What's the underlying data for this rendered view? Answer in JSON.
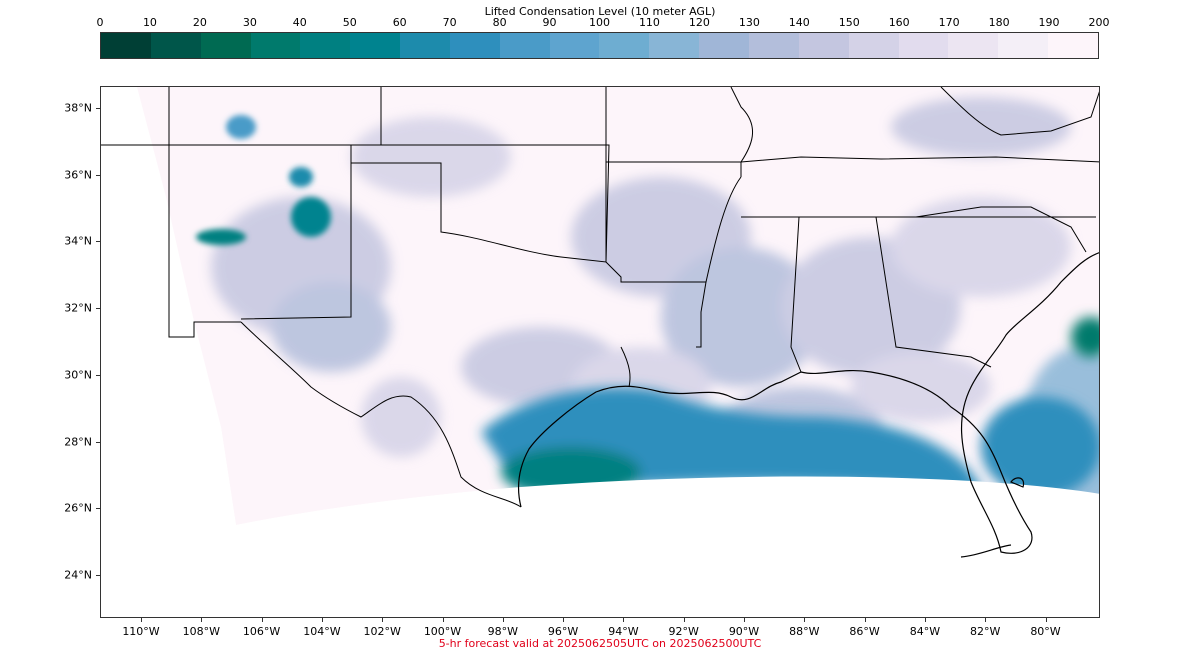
{
  "colorbar": {
    "title": "Lifted Condensation Level (10 meter AGL)",
    "ticks": [
      "0",
      "10",
      "20",
      "30",
      "40",
      "50",
      "60",
      "70",
      "80",
      "90",
      "100",
      "110",
      "120",
      "130",
      "140",
      "150",
      "160",
      "170",
      "180",
      "190",
      "200"
    ],
    "colors": [
      "#003f35",
      "#00564a",
      "#006a52",
      "#007a6c",
      "#008081",
      "#00838f",
      "#1d8bac",
      "#2e8fbd",
      "#4a9bc8",
      "#5ea4cf",
      "#6eadd1",
      "#88b5d6",
      "#a0b6d7",
      "#b3bedb",
      "#c4c6e0",
      "#d4d2e7",
      "#e2dcee",
      "#ece5f2",
      "#f4eff7",
      "#fdf5fa"
    ]
  },
  "map": {
    "lat_labels": [
      "38°N",
      "36°N",
      "34°N",
      "32°N",
      "30°N",
      "28°N",
      "26°N",
      "24°N"
    ],
    "lon_labels": [
      "110°W",
      "108°W",
      "106°W",
      "104°W",
      "102°W",
      "100°W",
      "98°W",
      "96°W",
      "94°W",
      "92°W",
      "90°W",
      "88°W",
      "86°W",
      "84°W",
      "82°W",
      "80°W"
    ],
    "background_color": "#fdf5fa",
    "water_color": "#2e8fbd",
    "coastal_color": "#00838f"
  },
  "footer": "5-hr forecast valid at 2025062505UTC on 2025062500UTC"
}
